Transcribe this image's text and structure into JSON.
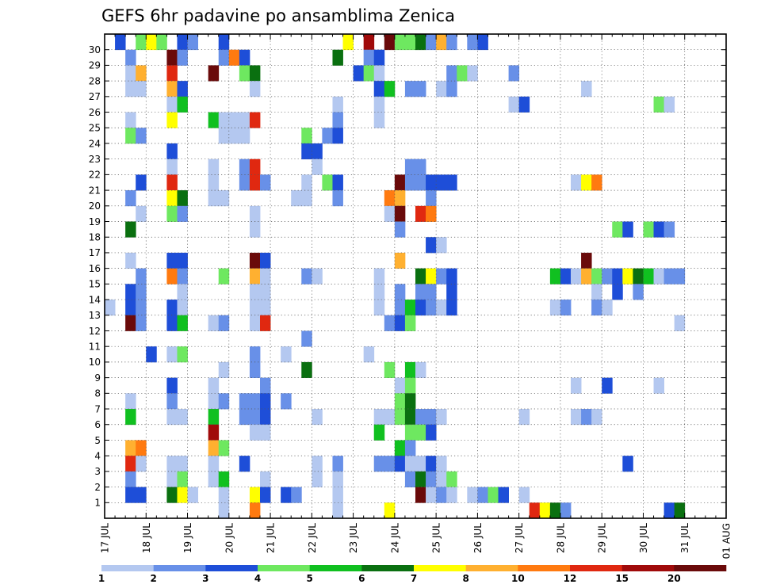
{
  "chart_data": {
    "type": "heatmap",
    "title": "GEFS 6hr padavine po ansamblima Zenica",
    "xlabel": "",
    "ylabel": "",
    "x_ticks": [
      "17 JUL",
      "18 JUL",
      "19 JUL",
      "20 JUL",
      "21 JUL",
      "22 JUL",
      "23 JUL",
      "24 JUL",
      "25 JUL",
      "26 JUL",
      "27 JUL",
      "28 JUL",
      "29 JUL",
      "30 JUL",
      "31 JUL",
      "01 AUG"
    ],
    "y_ticks": [
      1,
      2,
      3,
      4,
      5,
      6,
      7,
      8,
      9,
      10,
      11,
      12,
      13,
      14,
      15,
      16,
      17,
      18,
      19,
      20,
      21,
      22,
      23,
      24,
      25,
      26,
      27,
      28,
      29,
      30
    ],
    "ylim": [
      0,
      30
    ],
    "time_steps": 60,
    "grid": true,
    "legend": {
      "position": "bottom",
      "thresholds": [
        "1",
        "2",
        "3",
        "4",
        "5",
        "6",
        "7",
        "8",
        "10",
        "12",
        "15",
        "20"
      ],
      "colors": [
        "#b4c8f0",
        "#6890e8",
        "#1e4ed8",
        "#6ee860",
        "#10c020",
        "#0a7010",
        "#ffff00",
        "#ffb030",
        "#ff7a10",
        "#e02810",
        "#a00a0a",
        "#6a0a0a"
      ]
    },
    "cells": [
      [
        1,
        30,
        2
      ],
      [
        3,
        30,
        3
      ],
      [
        4,
        30,
        6
      ],
      [
        5,
        30,
        3
      ],
      [
        7,
        30,
        2
      ],
      [
        8,
        30,
        1
      ],
      [
        11,
        30,
        2
      ],
      [
        23,
        30,
        6
      ],
      [
        25,
        30,
        10
      ],
      [
        27,
        30,
        11
      ],
      [
        28,
        30,
        3
      ],
      [
        29,
        30,
        3
      ],
      [
        30,
        30,
        5
      ],
      [
        31,
        30,
        1
      ],
      [
        32,
        30,
        7
      ],
      [
        33,
        30,
        1
      ],
      [
        35,
        30,
        1
      ],
      [
        36,
        30,
        2
      ],
      [
        2,
        29,
        1
      ],
      [
        6,
        29,
        11
      ],
      [
        7,
        29,
        1
      ],
      [
        11,
        29,
        1
      ],
      [
        12,
        29,
        8
      ],
      [
        13,
        29,
        2
      ],
      [
        22,
        29,
        5
      ],
      [
        25,
        29,
        1
      ],
      [
        26,
        29,
        2
      ],
      [
        2,
        28,
        0
      ],
      [
        3,
        28,
        7
      ],
      [
        6,
        28,
        9
      ],
      [
        10,
        28,
        11
      ],
      [
        13,
        28,
        3
      ],
      [
        14,
        28,
        5
      ],
      [
        24,
        28,
        2
      ],
      [
        25,
        28,
        3
      ],
      [
        26,
        28,
        0
      ],
      [
        33,
        28,
        1
      ],
      [
        34,
        28,
        3
      ],
      [
        35,
        28,
        0
      ],
      [
        39,
        28,
        1
      ],
      [
        2,
        27,
        0
      ],
      [
        3,
        27,
        0
      ],
      [
        6,
        27,
        7
      ],
      [
        7,
        27,
        2
      ],
      [
        14,
        27,
        0
      ],
      [
        26,
        27,
        2
      ],
      [
        27,
        27,
        4
      ],
      [
        29,
        27,
        1
      ],
      [
        30,
        27,
        1
      ],
      [
        32,
        27,
        0
      ],
      [
        33,
        27,
        1
      ],
      [
        46,
        27,
        0
      ],
      [
        6,
        26,
        0
      ],
      [
        7,
        26,
        4
      ],
      [
        22,
        26,
        0
      ],
      [
        26,
        26,
        0
      ],
      [
        39,
        26,
        0
      ],
      [
        40,
        26,
        2
      ],
      [
        53,
        26,
        3
      ],
      [
        54,
        26,
        0
      ],
      [
        2,
        25,
        0
      ],
      [
        6,
        25,
        6
      ],
      [
        10,
        25,
        4
      ],
      [
        11,
        25,
        0
      ],
      [
        12,
        25,
        0
      ],
      [
        13,
        25,
        0
      ],
      [
        14,
        25,
        9
      ],
      [
        22,
        25,
        1
      ],
      [
        26,
        25,
        0
      ],
      [
        2,
        24,
        3
      ],
      [
        3,
        24,
        1
      ],
      [
        11,
        24,
        0
      ],
      [
        12,
        24,
        0
      ],
      [
        13,
        24,
        0
      ],
      [
        19,
        24,
        3
      ],
      [
        21,
        24,
        1
      ],
      [
        22,
        24,
        2
      ],
      [
        6,
        23,
        2
      ],
      [
        19,
        23,
        2
      ],
      [
        20,
        23,
        2
      ],
      [
        6,
        22,
        0
      ],
      [
        10,
        22,
        0
      ],
      [
        13,
        22,
        1
      ],
      [
        14,
        22,
        9
      ],
      [
        20,
        22,
        0
      ],
      [
        29,
        22,
        1
      ],
      [
        30,
        22,
        1
      ],
      [
        3,
        21,
        2
      ],
      [
        6,
        21,
        9
      ],
      [
        10,
        21,
        0
      ],
      [
        13,
        21,
        1
      ],
      [
        14,
        21,
        9
      ],
      [
        15,
        21,
        1
      ],
      [
        19,
        21,
        0
      ],
      [
        21,
        21,
        3
      ],
      [
        22,
        21,
        2
      ],
      [
        28,
        21,
        11
      ],
      [
        29,
        21,
        1
      ],
      [
        30,
        21,
        1
      ],
      [
        31,
        21,
        2
      ],
      [
        32,
        21,
        2
      ],
      [
        33,
        21,
        2
      ],
      [
        45,
        21,
        0
      ],
      [
        46,
        21,
        6
      ],
      [
        47,
        21,
        8
      ],
      [
        2,
        20,
        1
      ],
      [
        6,
        20,
        6
      ],
      [
        7,
        20,
        5
      ],
      [
        10,
        20,
        0
      ],
      [
        11,
        20,
        0
      ],
      [
        18,
        20,
        0
      ],
      [
        19,
        20,
        0
      ],
      [
        22,
        20,
        1
      ],
      [
        27,
        20,
        8
      ],
      [
        28,
        20,
        7
      ],
      [
        31,
        20,
        1
      ],
      [
        3,
        19,
        0
      ],
      [
        6,
        19,
        3
      ],
      [
        7,
        19,
        1
      ],
      [
        14,
        19,
        0
      ],
      [
        27,
        19,
        0
      ],
      [
        28,
        19,
        11
      ],
      [
        30,
        19,
        9
      ],
      [
        31,
        19,
        8
      ],
      [
        2,
        18,
        5
      ],
      [
        14,
        18,
        0
      ],
      [
        28,
        18,
        1
      ],
      [
        49,
        18,
        3
      ],
      [
        50,
        18,
        2
      ],
      [
        52,
        18,
        3
      ],
      [
        53,
        18,
        2
      ],
      [
        54,
        18,
        1
      ],
      [
        31,
        17,
        2
      ],
      [
        32,
        17,
        0
      ],
      [
        2,
        16,
        0
      ],
      [
        6,
        16,
        2
      ],
      [
        7,
        16,
        2
      ],
      [
        14,
        16,
        11
      ],
      [
        15,
        16,
        2
      ],
      [
        28,
        16,
        7
      ],
      [
        46,
        16,
        11
      ],
      [
        3,
        15,
        1
      ],
      [
        6,
        15,
        8
      ],
      [
        7,
        15,
        1
      ],
      [
        11,
        15,
        3
      ],
      [
        14,
        15,
        7
      ],
      [
        15,
        15,
        0
      ],
      [
        19,
        15,
        1
      ],
      [
        20,
        15,
        0
      ],
      [
        26,
        15,
        0
      ],
      [
        30,
        15,
        5
      ],
      [
        31,
        15,
        6
      ],
      [
        32,
        15,
        1
      ],
      [
        33,
        15,
        2
      ],
      [
        43,
        15,
        4
      ],
      [
        44,
        15,
        2
      ],
      [
        45,
        15,
        0
      ],
      [
        46,
        15,
        7
      ],
      [
        47,
        15,
        3
      ],
      [
        48,
        15,
        1
      ],
      [
        49,
        15,
        2
      ],
      [
        50,
        15,
        6
      ],
      [
        51,
        15,
        5
      ],
      [
        52,
        15,
        4
      ],
      [
        53,
        15,
        0
      ],
      [
        54,
        15,
        1
      ],
      [
        55,
        15,
        1
      ],
      [
        2,
        14,
        2
      ],
      [
        3,
        14,
        1
      ],
      [
        7,
        14,
        0
      ],
      [
        14,
        14,
        0
      ],
      [
        15,
        14,
        0
      ],
      [
        26,
        14,
        0
      ],
      [
        28,
        14,
        1
      ],
      [
        30,
        14,
        1
      ],
      [
        31,
        14,
        1
      ],
      [
        33,
        14,
        2
      ],
      [
        47,
        14,
        0
      ],
      [
        49,
        14,
        2
      ],
      [
        51,
        14,
        1
      ],
      [
        0,
        13,
        0
      ],
      [
        2,
        13,
        2
      ],
      [
        3,
        13,
        1
      ],
      [
        6,
        13,
        2
      ],
      [
        7,
        13,
        0
      ],
      [
        14,
        13,
        0
      ],
      [
        15,
        13,
        0
      ],
      [
        26,
        13,
        0
      ],
      [
        28,
        13,
        1
      ],
      [
        29,
        13,
        4
      ],
      [
        30,
        13,
        2
      ],
      [
        31,
        13,
        1
      ],
      [
        32,
        13,
        0
      ],
      [
        33,
        13,
        2
      ],
      [
        43,
        13,
        0
      ],
      [
        44,
        13,
        1
      ],
      [
        47,
        13,
        1
      ],
      [
        48,
        13,
        0
      ],
      [
        2,
        12,
        11
      ],
      [
        3,
        12,
        1
      ],
      [
        6,
        12,
        2
      ],
      [
        7,
        12,
        4
      ],
      [
        10,
        12,
        0
      ],
      [
        11,
        12,
        1
      ],
      [
        14,
        12,
        0
      ],
      [
        15,
        12,
        9
      ],
      [
        27,
        12,
        1
      ],
      [
        28,
        12,
        2
      ],
      [
        29,
        12,
        3
      ],
      [
        55,
        12,
        0
      ],
      [
        19,
        11,
        1
      ],
      [
        4,
        10,
        2
      ],
      [
        6,
        10,
        0
      ],
      [
        7,
        10,
        3
      ],
      [
        14,
        10,
        1
      ],
      [
        17,
        10,
        0
      ],
      [
        25,
        10,
        0
      ],
      [
        11,
        9,
        0
      ],
      [
        14,
        9,
        1
      ],
      [
        19,
        9,
        5
      ],
      [
        27,
        9,
        3
      ],
      [
        29,
        9,
        4
      ],
      [
        30,
        9,
        0
      ],
      [
        6,
        8,
        2
      ],
      [
        10,
        8,
        0
      ],
      [
        15,
        8,
        1
      ],
      [
        28,
        8,
        0
      ],
      [
        29,
        8,
        3
      ],
      [
        45,
        8,
        0
      ],
      [
        48,
        8,
        2
      ],
      [
        53,
        8,
        0
      ],
      [
        2,
        7,
        0
      ],
      [
        6,
        7,
        1
      ],
      [
        10,
        7,
        0
      ],
      [
        11,
        7,
        1
      ],
      [
        13,
        7,
        1
      ],
      [
        14,
        7,
        1
      ],
      [
        15,
        7,
        2
      ],
      [
        17,
        7,
        1
      ],
      [
        28,
        7,
        3
      ],
      [
        29,
        7,
        5
      ],
      [
        2,
        6,
        4
      ],
      [
        6,
        6,
        0
      ],
      [
        7,
        6,
        0
      ],
      [
        10,
        6,
        4
      ],
      [
        13,
        6,
        1
      ],
      [
        14,
        6,
        1
      ],
      [
        15,
        6,
        2
      ],
      [
        20,
        6,
        0
      ],
      [
        26,
        6,
        0
      ],
      [
        27,
        6,
        0
      ],
      [
        28,
        6,
        3
      ],
      [
        29,
        6,
        5
      ],
      [
        30,
        6,
        1
      ],
      [
        31,
        6,
        1
      ],
      [
        32,
        6,
        0
      ],
      [
        40,
        6,
        0
      ],
      [
        45,
        6,
        0
      ],
      [
        46,
        6,
        1
      ],
      [
        47,
        6,
        0
      ],
      [
        10,
        5,
        10
      ],
      [
        14,
        5,
        0
      ],
      [
        15,
        5,
        0
      ],
      [
        26,
        5,
        4
      ],
      [
        29,
        5,
        3
      ],
      [
        30,
        5,
        3
      ],
      [
        31,
        5,
        2
      ],
      [
        2,
        4,
        7
      ],
      [
        3,
        4,
        8
      ],
      [
        10,
        4,
        7
      ],
      [
        11,
        4,
        3
      ],
      [
        28,
        4,
        4
      ],
      [
        29,
        4,
        1
      ],
      [
        2,
        3,
        9
      ],
      [
        3,
        3,
        0
      ],
      [
        6,
        3,
        0
      ],
      [
        7,
        3,
        0
      ],
      [
        10,
        3,
        0
      ],
      [
        13,
        3,
        2
      ],
      [
        20,
        3,
        0
      ],
      [
        22,
        3,
        1
      ],
      [
        26,
        3,
        1
      ],
      [
        27,
        3,
        1
      ],
      [
        28,
        3,
        2
      ],
      [
        29,
        3,
        0
      ],
      [
        30,
        3,
        0
      ],
      [
        31,
        3,
        2
      ],
      [
        32,
        3,
        0
      ],
      [
        50,
        3,
        2
      ],
      [
        2,
        2,
        1
      ],
      [
        6,
        2,
        0
      ],
      [
        7,
        2,
        3
      ],
      [
        10,
        2,
        0
      ],
      [
        11,
        2,
        4
      ],
      [
        15,
        2,
        0
      ],
      [
        20,
        2,
        0
      ],
      [
        22,
        2,
        0
      ],
      [
        29,
        2,
        1
      ],
      [
        30,
        2,
        5
      ],
      [
        31,
        2,
        1
      ],
      [
        32,
        2,
        0
      ],
      [
        33,
        2,
        3
      ],
      [
        2,
        1,
        2
      ],
      [
        3,
        1,
        2
      ],
      [
        6,
        1,
        5
      ],
      [
        7,
        1,
        6
      ],
      [
        8,
        1,
        0
      ],
      [
        11,
        1,
        0
      ],
      [
        14,
        1,
        6
      ],
      [
        15,
        1,
        2
      ],
      [
        17,
        1,
        2
      ],
      [
        18,
        1,
        1
      ],
      [
        22,
        1,
        0
      ],
      [
        30,
        1,
        11
      ],
      [
        31,
        1,
        0
      ],
      [
        32,
        1,
        1
      ],
      [
        33,
        1,
        0
      ],
      [
        35,
        1,
        0
      ],
      [
        36,
        1,
        1
      ],
      [
        37,
        1,
        3
      ],
      [
        38,
        1,
        2
      ],
      [
        40,
        1,
        0
      ],
      [
        11,
        0,
        0
      ],
      [
        14,
        0,
        8
      ],
      [
        22,
        0,
        0
      ],
      [
        27,
        0,
        6
      ],
      [
        41,
        0,
        9
      ],
      [
        42,
        0,
        6
      ],
      [
        43,
        0,
        5
      ],
      [
        44,
        0,
        1
      ],
      [
        54,
        0,
        2
      ],
      [
        55,
        0,
        5
      ]
    ]
  }
}
